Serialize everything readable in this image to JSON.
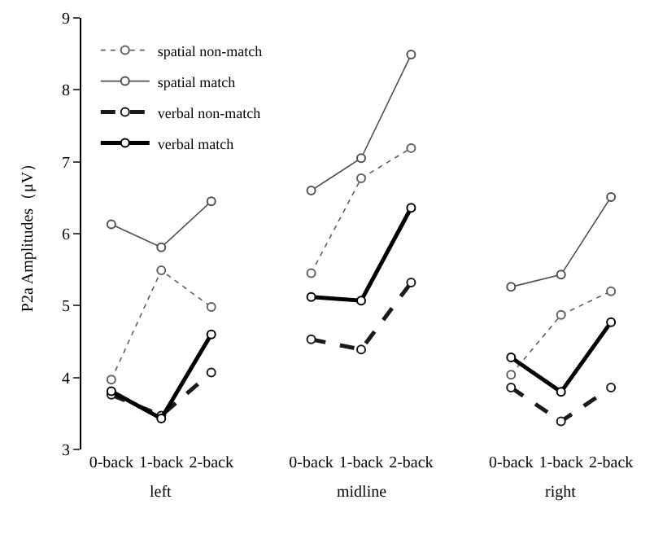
{
  "chart_data": {
    "type": "line",
    "ylabel": "P2a Amplitudes（μV）",
    "categories": [
      "0-back",
      "1-back",
      "2-back",
      null,
      "0-back",
      "1-back",
      "2-back",
      null,
      "0-back",
      "1-back",
      "2-back"
    ],
    "annotations": [
      "left",
      "midline",
      "right"
    ],
    "series": [
      {
        "name": "spatial non-match",
        "color": "#606060",
        "line_style": "dotted",
        "values": [
          3.97,
          5.49,
          4.98,
          null,
          5.45,
          6.77,
          7.19,
          null,
          4.04,
          4.87,
          5.2
        ]
      },
      {
        "name": "spatial match",
        "color": "#505050",
        "line_style": "solid",
        "values": [
          6.13,
          5.81,
          6.45,
          null,
          6.6,
          7.05,
          8.49,
          null,
          5.26,
          5.43,
          6.51
        ]
      },
      {
        "name": "verbal non-match",
        "color": "#1a1a1a",
        "line_style": "dashed",
        "values": [
          3.76,
          3.47,
          4.07,
          null,
          4.53,
          4.39,
          5.32,
          null,
          3.86,
          3.39,
          3.86
        ]
      },
      {
        "name": "verbal match",
        "color": "#000000",
        "line_style": "solid",
        "values": [
          3.81,
          3.43,
          4.6,
          null,
          5.12,
          5.07,
          6.36,
          null,
          4.28,
          3.8,
          4.77
        ]
      }
    ],
    "marker": "circle",
    "ylim": [
      3,
      9
    ],
    "yticks": [
      3,
      4,
      5,
      6,
      7,
      8,
      9
    ],
    "legend": "top left"
  }
}
